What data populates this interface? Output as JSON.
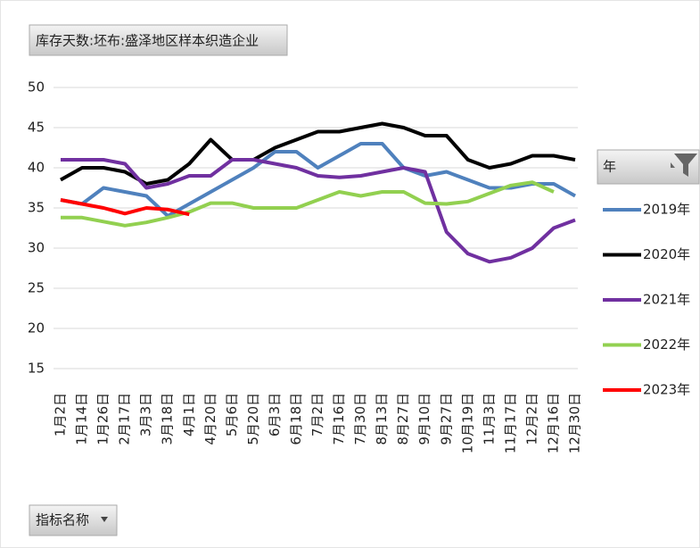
{
  "chart_data": {
    "type": "line",
    "title": "库存天数:坯布:盛泽地区样本织造企业",
    "legend_title": "年",
    "field_button": "指标名称",
    "categories": [
      "1月2日",
      "1月14日",
      "1月26日",
      "2月17日",
      "3月3日",
      "3月18日",
      "4月1日",
      "4月20日",
      "5月6日",
      "5月20日",
      "6月3日",
      "6月18日",
      "7月2日",
      "7月16日",
      "7月30日",
      "8月13日",
      "8月27日",
      "9月10日",
      "9月27日",
      "10月19日",
      "11月3日",
      "11月17日",
      "12月2日",
      "12月16日",
      "12月30日"
    ],
    "series": [
      {
        "name": "2019年",
        "color": "#4f81bd",
        "values": [
          36,
          35.5,
          37.5,
          37,
          36.5,
          34,
          35.5,
          37,
          38.5,
          40,
          42,
          42,
          40,
          41.5,
          43,
          43,
          40,
          39,
          39.5,
          38.5,
          37.5,
          37.5,
          38,
          38,
          36.5
        ]
      },
      {
        "name": "2020年",
        "color": "#000000",
        "values": [
          38.5,
          40,
          40,
          39.5,
          38,
          38.5,
          40.5,
          43.5,
          41,
          41,
          42.5,
          43.5,
          44.5,
          44.5,
          45,
          45.5,
          45,
          44,
          44,
          41,
          40,
          40.5,
          41.5,
          41.5,
          41
        ]
      },
      {
        "name": "2021年",
        "color": "#7030a0",
        "values": [
          41,
          41,
          41,
          40.5,
          37.5,
          38,
          39,
          39,
          41,
          41,
          40.5,
          40,
          39,
          38.8,
          39,
          39.5,
          40,
          39.5,
          32,
          29.3,
          28.3,
          28.8,
          30,
          32.5,
          33.5
        ]
      },
      {
        "name": "2022年",
        "color": "#92d050",
        "values": [
          33.8,
          33.8,
          33.3,
          32.8,
          33.2,
          33.8,
          34.5,
          35.6,
          35.6,
          35,
          35,
          35,
          36,
          37,
          36.5,
          37,
          37,
          35.6,
          35.5,
          35.8,
          36.8,
          37.8,
          38.2,
          37,
          null
        ]
      },
      {
        "name": "2023年",
        "color": "#ff0000",
        "values": [
          36,
          35.5,
          35,
          34.3,
          35,
          34.8,
          34.2,
          null,
          null,
          null,
          null,
          null,
          null,
          null,
          null,
          null,
          null,
          null,
          null,
          null,
          null,
          null,
          null,
          null,
          null
        ]
      }
    ],
    "ylim": [
      15,
      50
    ],
    "yticks": [
      15,
      20,
      25,
      30,
      35,
      40,
      45,
      50
    ],
    "grid": true
  }
}
